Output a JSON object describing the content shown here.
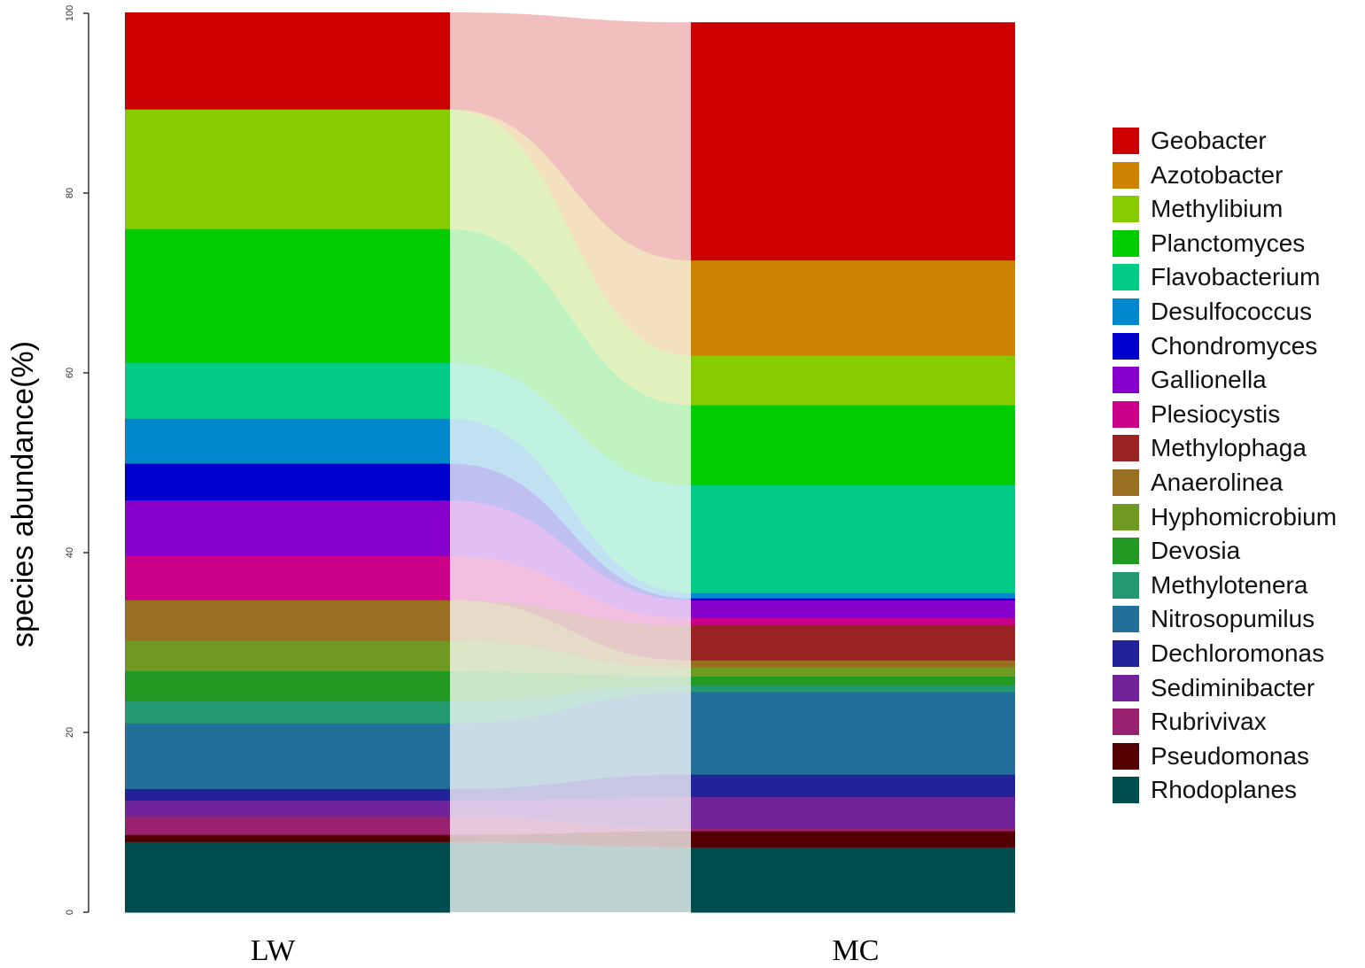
{
  "chart_data": {
    "type": "stacked-bar-alluvial",
    "ylabel": "species abundance(%)",
    "ylim": [
      0,
      100
    ],
    "yticks": [
      "0",
      "20",
      "40",
      "60",
      "80",
      "100"
    ],
    "categories": [
      "LW",
      "MC"
    ],
    "series": [
      {
        "name": "Geobacter",
        "color": "#cc0000",
        "values": [
          10.8,
          26.5
        ]
      },
      {
        "name": "Azotobacter",
        "color": "#cc8400",
        "values": [
          0.0,
          10.6
        ]
      },
      {
        "name": "Methylibium",
        "color": "#88cc00",
        "values": [
          13.3,
          5.5
        ]
      },
      {
        "name": "Planctomyces",
        "color": "#00cc00",
        "values": [
          14.9,
          8.9
        ]
      },
      {
        "name": "Flavobacterium",
        "color": "#00cc88",
        "values": [
          6.2,
          12.0
        ]
      },
      {
        "name": "Desulfococcus",
        "color": "#0088cc",
        "values": [
          5.0,
          0.6
        ]
      },
      {
        "name": "Chondromyces",
        "color": "#0000cc",
        "values": [
          4.1,
          0.2
        ]
      },
      {
        "name": "Gallionella",
        "color": "#8800cc",
        "values": [
          6.2,
          2.0
        ]
      },
      {
        "name": "Plesiocystis",
        "color": "#cc0088",
        "values": [
          4.9,
          0.8
        ]
      },
      {
        "name": "Methylophaga",
        "color": "#992222",
        "values": [
          0.0,
          3.9
        ]
      },
      {
        "name": "Anaerolinea",
        "color": "#997022",
        "values": [
          4.5,
          0.8
        ]
      },
      {
        "name": "Hyphomicrobium",
        "color": "#709922",
        "values": [
          3.4,
          1.0
        ]
      },
      {
        "name": "Devosia",
        "color": "#229922",
        "values": [
          3.3,
          1.0
        ]
      },
      {
        "name": "Methylotenera",
        "color": "#229970",
        "values": [
          2.5,
          0.7
        ]
      },
      {
        "name": "Nitrosopumilus",
        "color": "#227099",
        "values": [
          7.3,
          9.2
        ]
      },
      {
        "name": "Dechloromonas",
        "color": "#222299",
        "values": [
          1.3,
          2.5
        ]
      },
      {
        "name": "Sediminibacter",
        "color": "#702299",
        "values": [
          1.8,
          3.5
        ]
      },
      {
        "name": "Rubrivivax",
        "color": "#992270",
        "values": [
          2.0,
          0.3
        ]
      },
      {
        "name": "Pseudomonas",
        "color": "#550000",
        "values": [
          0.8,
          1.8
        ]
      },
      {
        "name": "Rhodoplanes",
        "color": "#004d4d",
        "values": [
          7.8,
          7.2
        ]
      }
    ]
  }
}
